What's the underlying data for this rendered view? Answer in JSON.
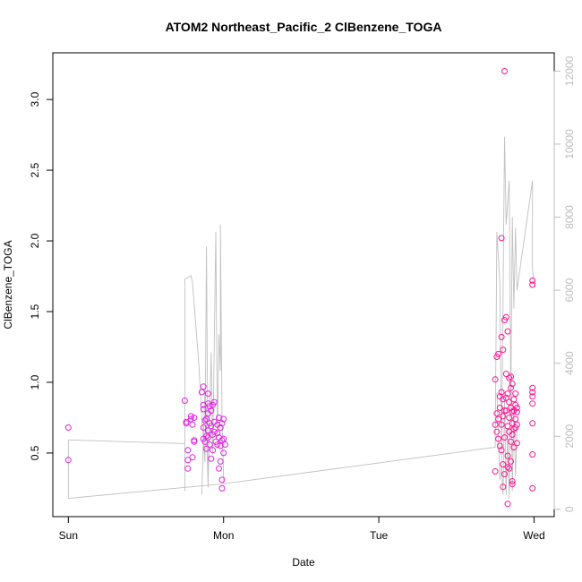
{
  "chart_data": {
    "type": "scatter",
    "title": "ATOM2 Northeast_Pacific_2 ClBenzene_TOGA",
    "xlabel": "Date",
    "ylabel": "ClBenzene_TOGA",
    "x_ticks": [
      "Sun",
      "Mon",
      "Tue",
      "Wed"
    ],
    "x_range_days": [
      -0.1,
      3.13
    ],
    "ylim": [
      0.05,
      3.33
    ],
    "y_ticks": [
      "0.5",
      "1.0",
      "1.5",
      "2.0",
      "2.5",
      "3.0"
    ],
    "y2lim": [
      -200,
      12500
    ],
    "y2_ticks": [
      "0",
      "2000",
      "4000",
      "6000",
      "8000",
      "10000",
      "12000"
    ],
    "colors": {
      "points": [
        "#e020e0",
        "#ff1493"
      ],
      "line": "#c0c0c0",
      "axis": "#000000",
      "right_axis": "#bdbdbd"
    },
    "series": [
      {
        "points": [
          [
            0.0,
            0.68
          ],
          [
            0.0,
            0.45
          ],
          [
            0.75,
            0.87
          ],
          [
            0.76,
            0.72
          ],
          [
            0.76,
            0.71
          ],
          [
            0.77,
            0.52
          ],
          [
            0.77,
            0.45
          ],
          [
            0.77,
            0.39
          ],
          [
            0.79,
            0.76
          ],
          [
            0.79,
            0.74
          ],
          [
            0.8,
            0.7
          ],
          [
            0.81,
            0.75
          ],
          [
            0.81,
            0.59
          ],
          [
            0.81,
            0.58
          ],
          [
            0.8,
            0.47
          ],
          [
            0.86,
            0.93
          ],
          [
            0.87,
            0.97
          ],
          [
            0.87,
            0.84
          ],
          [
            0.87,
            0.81
          ],
          [
            0.87,
            0.68
          ],
          [
            0.87,
            0.6
          ],
          [
            0.88,
            0.73
          ],
          [
            0.88,
            0.58
          ],
          [
            0.89,
            0.74
          ],
          [
            0.89,
            0.62
          ],
          [
            0.89,
            0.53
          ],
          [
            0.9,
            0.92
          ],
          [
            0.9,
            0.85
          ],
          [
            0.9,
            0.78
          ],
          [
            0.9,
            0.66
          ],
          [
            0.9,
            0.61
          ],
          [
            0.91,
            0.83
          ],
          [
            0.91,
            0.71
          ],
          [
            0.91,
            0.56
          ],
          [
            0.92,
            0.8
          ],
          [
            0.92,
            0.69
          ],
          [
            0.92,
            0.46
          ],
          [
            0.93,
            0.84
          ],
          [
            0.93,
            0.63
          ],
          [
            0.93,
            0.52
          ],
          [
            0.94,
            0.86
          ],
          [
            0.94,
            0.72
          ],
          [
            0.94,
            0.65
          ],
          [
            0.95,
            0.58
          ],
          [
            0.96,
            0.7
          ],
          [
            0.96,
            0.64
          ],
          [
            0.96,
            0.56
          ],
          [
            0.97,
            0.75
          ],
          [
            0.97,
            0.61
          ],
          [
            0.97,
            0.39
          ],
          [
            0.98,
            0.68
          ],
          [
            0.98,
            0.55
          ],
          [
            0.98,
            0.44
          ],
          [
            0.99,
            0.71
          ],
          [
            0.99,
            0.59
          ],
          [
            0.99,
            0.31
          ],
          [
            0.99,
            0.25
          ],
          [
            1.0,
            0.74
          ],
          [
            1.0,
            0.6
          ],
          [
            1.0,
            0.5
          ],
          [
            1.01,
            0.56
          ]
        ]
      },
      {
        "points": [
          [
            2.75,
            1.02
          ],
          [
            2.75,
            0.7
          ],
          [
            2.75,
            0.37
          ],
          [
            2.76,
            1.18
          ],
          [
            2.76,
            0.78
          ],
          [
            2.76,
            0.65
          ],
          [
            2.77,
            1.2
          ],
          [
            2.77,
            0.74
          ],
          [
            2.77,
            0.6
          ],
          [
            2.78,
            0.9
          ],
          [
            2.78,
            0.82
          ],
          [
            2.78,
            0.55
          ],
          [
            2.79,
            2.02
          ],
          [
            2.79,
            1.32
          ],
          [
            2.79,
            0.93
          ],
          [
            2.79,
            0.7
          ],
          [
            2.79,
            0.52
          ],
          [
            2.8,
            1.23
          ],
          [
            2.8,
            0.88
          ],
          [
            2.8,
            0.76
          ],
          [
            2.8,
            0.42
          ],
          [
            2.8,
            0.26
          ],
          [
            2.81,
            3.2
          ],
          [
            2.81,
            1.44
          ],
          [
            2.81,
            0.8
          ],
          [
            2.81,
            0.61
          ],
          [
            2.81,
            0.35
          ],
          [
            2.82,
            1.46
          ],
          [
            2.82,
            1.06
          ],
          [
            2.82,
            0.89
          ],
          [
            2.82,
            0.8
          ],
          [
            2.83,
            1.36
          ],
          [
            2.83,
            0.92
          ],
          [
            2.83,
            0.69
          ],
          [
            2.83,
            0.48
          ],
          [
            2.83,
            0.4
          ],
          [
            2.83,
            0.14
          ],
          [
            2.84,
            1.03
          ],
          [
            2.84,
            0.86
          ],
          [
            2.84,
            0.75
          ],
          [
            2.84,
            0.65
          ],
          [
            2.84,
            0.39
          ],
          [
            2.85,
            1.04
          ],
          [
            2.85,
            0.96
          ],
          [
            2.85,
            0.82
          ],
          [
            2.85,
            0.58
          ],
          [
            2.85,
            0.44
          ],
          [
            2.86,
            0.99
          ],
          [
            2.86,
            0.79
          ],
          [
            2.86,
            0.71
          ],
          [
            2.86,
            0.63
          ],
          [
            2.86,
            0.3
          ],
          [
            2.86,
            0.28
          ],
          [
            2.87,
            0.88
          ],
          [
            2.87,
            0.8
          ],
          [
            2.87,
            0.67
          ],
          [
            2.87,
            0.54
          ],
          [
            2.88,
            0.92
          ],
          [
            2.88,
            0.84
          ],
          [
            2.88,
            0.74
          ],
          [
            2.88,
            0.68
          ],
          [
            2.89,
            0.82
          ],
          [
            2.89,
            0.79
          ],
          [
            2.89,
            0.7
          ],
          [
            2.89,
            0.57
          ],
          [
            2.99,
            1.72
          ],
          [
            2.99,
            1.69
          ],
          [
            2.99,
            0.96
          ],
          [
            2.99,
            0.93
          ],
          [
            2.99,
            0.9
          ],
          [
            2.99,
            0.85
          ],
          [
            2.99,
            0.71
          ],
          [
            2.99,
            0.49
          ],
          [
            2.99,
            0.25
          ]
        ]
      }
    ],
    "background_line": {
      "segments": [
        [
          [
            0.0,
            300
          ],
          [
            0.0,
            1900
          ]
        ],
        [
          [
            0.0,
            300
          ],
          [
            1.0,
            700
          ],
          [
            2.75,
            1700
          ],
          [
            2.76,
            7600
          ],
          [
            2.78,
            6200
          ],
          [
            2.79,
            1300
          ],
          [
            2.81,
            10200
          ],
          [
            2.82,
            7800
          ],
          [
            2.84,
            9000
          ],
          [
            2.85,
            3200
          ],
          [
            2.86,
            8000
          ],
          [
            2.87,
            5500
          ],
          [
            2.88,
            7700
          ],
          [
            2.89,
            6000
          ],
          [
            2.99,
            9000
          ],
          [
            2.99,
            6600
          ],
          [
            3.0,
            6100
          ]
        ],
        [
          [
            0.0,
            1900
          ],
          [
            0.75,
            1800
          ],
          [
            0.75,
            6300
          ],
          [
            0.79,
            6400
          ],
          [
            0.8,
            6200
          ],
          [
            0.84,
            4000
          ],
          [
            0.86,
            2500
          ],
          [
            0.88,
            1300
          ],
          [
            0.89,
            7200
          ],
          [
            0.9,
            600
          ],
          [
            0.92,
            4300
          ],
          [
            0.93,
            1500
          ],
          [
            0.95,
            7600
          ],
          [
            0.96,
            2000
          ],
          [
            0.97,
            4800
          ],
          [
            0.98,
            3800
          ],
          [
            0.98,
            7800
          ],
          [
            0.99,
            2400
          ],
          [
            1.0,
            900
          ],
          [
            1.0,
            700
          ]
        ],
        [
          [
            0.75,
            1900
          ],
          [
            0.75,
            500
          ]
        ],
        [
          [
            0.86,
            400
          ],
          [
            0.88,
            3300
          ],
          [
            0.9,
            700
          ]
        ],
        [
          [
            2.76,
            3200
          ],
          [
            2.78,
            800
          ],
          [
            2.79,
            1200
          ],
          [
            2.8,
            400
          ],
          [
            2.81,
            3000
          ],
          [
            2.82,
            400
          ],
          [
            2.83,
            2200
          ],
          [
            2.84,
            300
          ],
          [
            2.85,
            4500
          ],
          [
            2.86,
            500
          ],
          [
            2.87,
            2800
          ],
          [
            2.88,
            900
          ],
          [
            2.89,
            2200
          ]
        ]
      ]
    }
  }
}
